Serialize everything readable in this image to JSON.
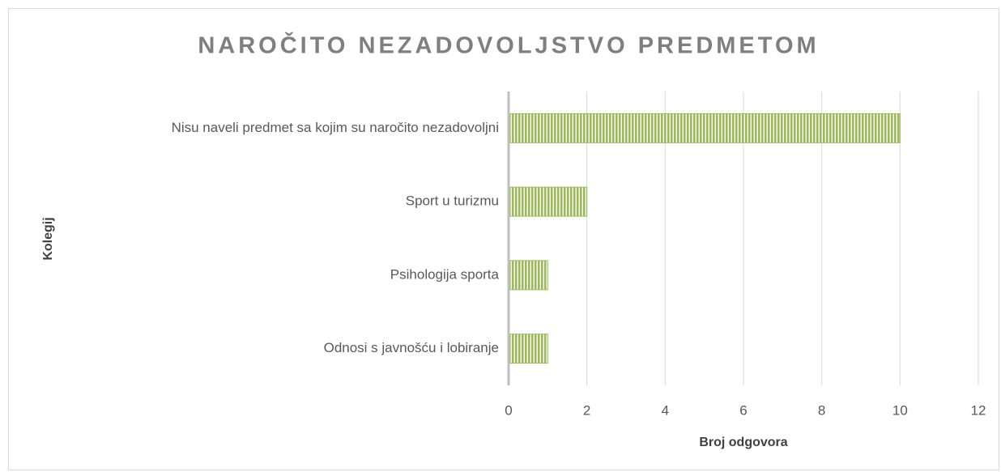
{
  "chart_data": {
    "type": "bar",
    "orientation": "horizontal",
    "title": "NAROČITO NEZADOVOLJSTVO PREDMETOM",
    "categories": [
      "Nisu naveli predmet sa kojim su naročito nezadovoljni",
      "Sport u turizmu",
      "Psihologija sporta",
      "Odnosi s javnošću i lobiranje"
    ],
    "values": [
      10,
      2,
      1,
      1
    ],
    "color": "#9bbb59",
    "xlim": [
      0,
      12
    ],
    "xticks": [
      0,
      2,
      4,
      6,
      8,
      10,
      12
    ],
    "grid": true,
    "xlabel": "Broj odgovora",
    "ylabel": "Kolegij"
  }
}
